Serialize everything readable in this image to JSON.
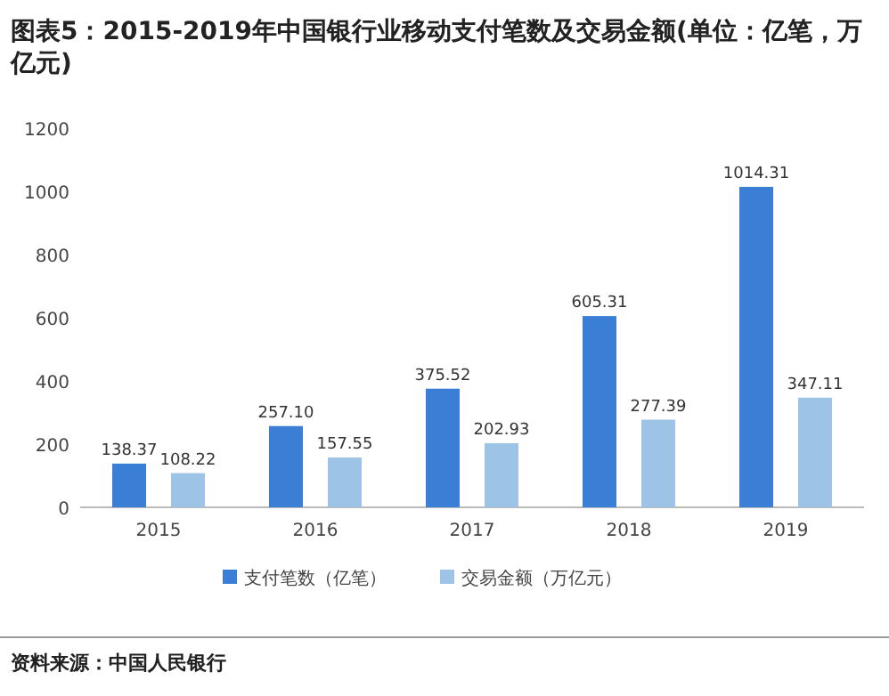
{
  "chart_data": {
    "type": "bar",
    "title": "图表5：2015-2019年中国银行业移动支付笔数及交易金额(单位：亿笔，万亿元)",
    "categories": [
      "2015",
      "2016",
      "2017",
      "2018",
      "2019"
    ],
    "series": [
      {
        "name": "支付笔数（亿笔）",
        "color": "#3a7fd5",
        "values": [
          138.37,
          257.1,
          375.52,
          605.31,
          1014.31
        ],
        "value_labels": [
          "138.37",
          "257.10",
          "375.52",
          "605.31",
          "1014.31"
        ]
      },
      {
        "name": "交易金额（万亿元）",
        "color": "#9dc3e6",
        "values": [
          108.22,
          157.55,
          202.93,
          277.39,
          347.11
        ],
        "value_labels": [
          "108.22",
          "157.55",
          "202.93",
          "277.39",
          "347.11"
        ]
      }
    ],
    "ylim": [
      0,
      1200
    ],
    "yticks": [
      0,
      200,
      400,
      600,
      800,
      1000,
      1200
    ],
    "legend": "bottom",
    "grid": false,
    "annotations": [
      "资料来源：中国人民银行"
    ]
  }
}
